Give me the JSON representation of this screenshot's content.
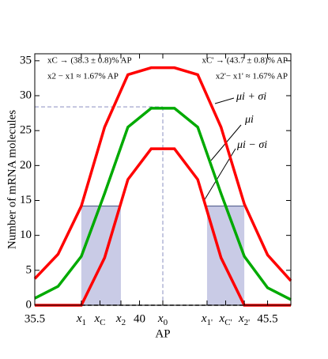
{
  "chart_data": {
    "type": "line",
    "xlabel": "AP",
    "ylabel": "Number of mRNA molecules",
    "x": [
      35.5,
      36.5,
      37.5,
      38.5,
      39.5,
      40.5,
      41.5,
      42.5,
      43.5,
      44.5,
      45.5,
      46.5
    ],
    "series": [
      {
        "name": "μi + σi",
        "color": "#ff0000",
        "values": [
          3.8,
          7.3,
          14.2,
          25.5,
          33,
          34,
          34,
          33,
          25.5,
          14.5,
          7.2,
          3.5
        ]
      },
      {
        "name": "μi",
        "color": "#00aa00",
        "values": [
          1,
          2.7,
          7,
          16,
          25.5,
          28.2,
          28.2,
          25.5,
          16,
          7,
          2.5,
          0.8
        ]
      },
      {
        "name": "μi − σi",
        "color": "#ff0000",
        "values": [
          0,
          0,
          0,
          6.8,
          18,
          22.4,
          22.4,
          18,
          6.8,
          0,
          0,
          0
        ]
      }
    ],
    "annotations": [
      "xC → (38.3 ± 0.8)% AP",
      "x2 − x1 ≈ 1.67% AP",
      "xC' → (43.7 ± 0.8)% AP",
      "x2'− x1' ≈ 1.67% AP"
    ],
    "threshold": 14.2,
    "peak": 28.4,
    "xlim": [
      35.5,
      46.5
    ],
    "ylim": [
      0,
      36
    ],
    "xticks": [
      35.5,
      {
        "value": 37.5,
        "label": "x1"
      },
      {
        "value": 38.3,
        "label": "xC"
      },
      {
        "value": 39.2,
        "label": "x2"
      },
      40,
      {
        "value": 41,
        "label": "x0"
      },
      {
        "value": 42.9,
        "label": "x1'"
      },
      {
        "value": 43.7,
        "label": "xC'"
      },
      {
        "value": 44.5,
        "label": "x2'"
      },
      45.5
    ],
    "yticks": [
      0,
      5,
      10,
      15,
      20,
      25,
      30,
      35
    ]
  }
}
